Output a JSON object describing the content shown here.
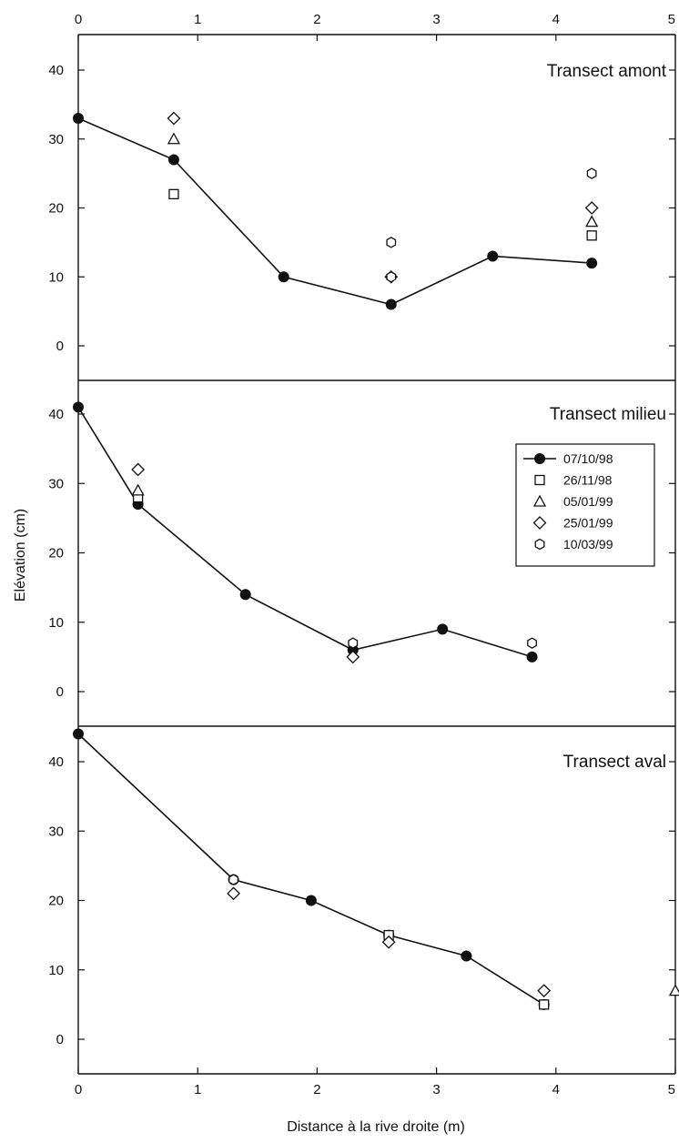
{
  "chart_data": {
    "type": "scatter",
    "xlabel": "Distance à la rive droite (m)",
    "ylabel": "Elévation (cm)",
    "x_ticks": [
      0,
      1,
      2,
      3,
      4,
      5
    ],
    "xlim": [
      0,
      5
    ],
    "ylim": [
      -5,
      45
    ],
    "y_ticks": [
      0,
      10,
      20,
      30,
      40
    ],
    "grid": false,
    "legend_position": "top-right of middle panel",
    "legend": [
      {
        "label": "07/10/98",
        "marker": "filled-circle-line"
      },
      {
        "label": "26/11/98",
        "marker": "square"
      },
      {
        "label": "05/01/99",
        "marker": "triangle"
      },
      {
        "label": "25/01/99",
        "marker": "diamond"
      },
      {
        "label": "10/03/99",
        "marker": "hexagon"
      }
    ],
    "panels": [
      {
        "title": "Transect amont",
        "series": [
          {
            "name": "07/10/98",
            "marker": "circle",
            "line": true,
            "points": [
              [
                0,
                33
              ],
              [
                0.8,
                27
              ],
              [
                1.72,
                10
              ],
              [
                2.62,
                6
              ],
              [
                3.47,
                13
              ],
              [
                4.3,
                12
              ]
            ]
          },
          {
            "name": "26/11/98",
            "marker": "square",
            "points": [
              [
                0.8,
                22
              ],
              [
                4.3,
                16
              ]
            ]
          },
          {
            "name": "05/01/99",
            "marker": "triangle",
            "points": [
              [
                0.8,
                30
              ],
              [
                4.3,
                18
              ]
            ]
          },
          {
            "name": "25/01/99",
            "marker": "diamond",
            "points": [
              [
                0.8,
                33
              ],
              [
                2.62,
                10
              ],
              [
                4.3,
                20
              ]
            ]
          },
          {
            "name": "10/03/99",
            "marker": "hexagon",
            "points": [
              [
                2.62,
                15
              ],
              [
                2.62,
                10
              ],
              [
                4.3,
                25
              ]
            ]
          }
        ]
      },
      {
        "title": "Transect milieu",
        "series": [
          {
            "name": "07/10/98",
            "marker": "circle",
            "line": true,
            "points": [
              [
                0,
                41
              ],
              [
                0.5,
                27
              ],
              [
                1.4,
                14
              ],
              [
                2.3,
                6
              ],
              [
                3.05,
                9
              ],
              [
                3.8,
                5
              ]
            ]
          },
          {
            "name": "26/11/98",
            "marker": "square",
            "points": [
              [
                0.5,
                28
              ]
            ]
          },
          {
            "name": "05/01/99",
            "marker": "triangle",
            "points": [
              [
                0.5,
                29
              ]
            ]
          },
          {
            "name": "25/01/99",
            "marker": "diamond",
            "points": [
              [
                0.5,
                32
              ],
              [
                2.3,
                5
              ]
            ]
          },
          {
            "name": "10/03/99",
            "marker": "hexagon",
            "points": [
              [
                2.3,
                7
              ],
              [
                3.8,
                7
              ]
            ]
          }
        ]
      },
      {
        "title": "Transect aval",
        "series": [
          {
            "name": "07/10/98",
            "marker": "circle",
            "line": true,
            "points": [
              [
                0,
                44
              ],
              [
                1.3,
                23
              ],
              [
                1.95,
                20
              ],
              [
                2.6,
                15
              ],
              [
                3.25,
                12
              ],
              [
                3.9,
                5
              ]
            ]
          },
          {
            "name": "26/11/98",
            "marker": "square",
            "points": [
              [
                2.6,
                15
              ],
              [
                3.9,
                5
              ]
            ]
          },
          {
            "name": "05/01/99",
            "marker": "triangle",
            "points": [
              [
                5.0,
                7
              ]
            ]
          },
          {
            "name": "25/01/99",
            "marker": "diamond",
            "points": [
              [
                1.3,
                21
              ],
              [
                2.6,
                14
              ],
              [
                3.9,
                7
              ]
            ]
          },
          {
            "name": "10/03/99",
            "marker": "hexagon",
            "points": [
              [
                1.3,
                23
              ]
            ]
          }
        ]
      }
    ]
  }
}
